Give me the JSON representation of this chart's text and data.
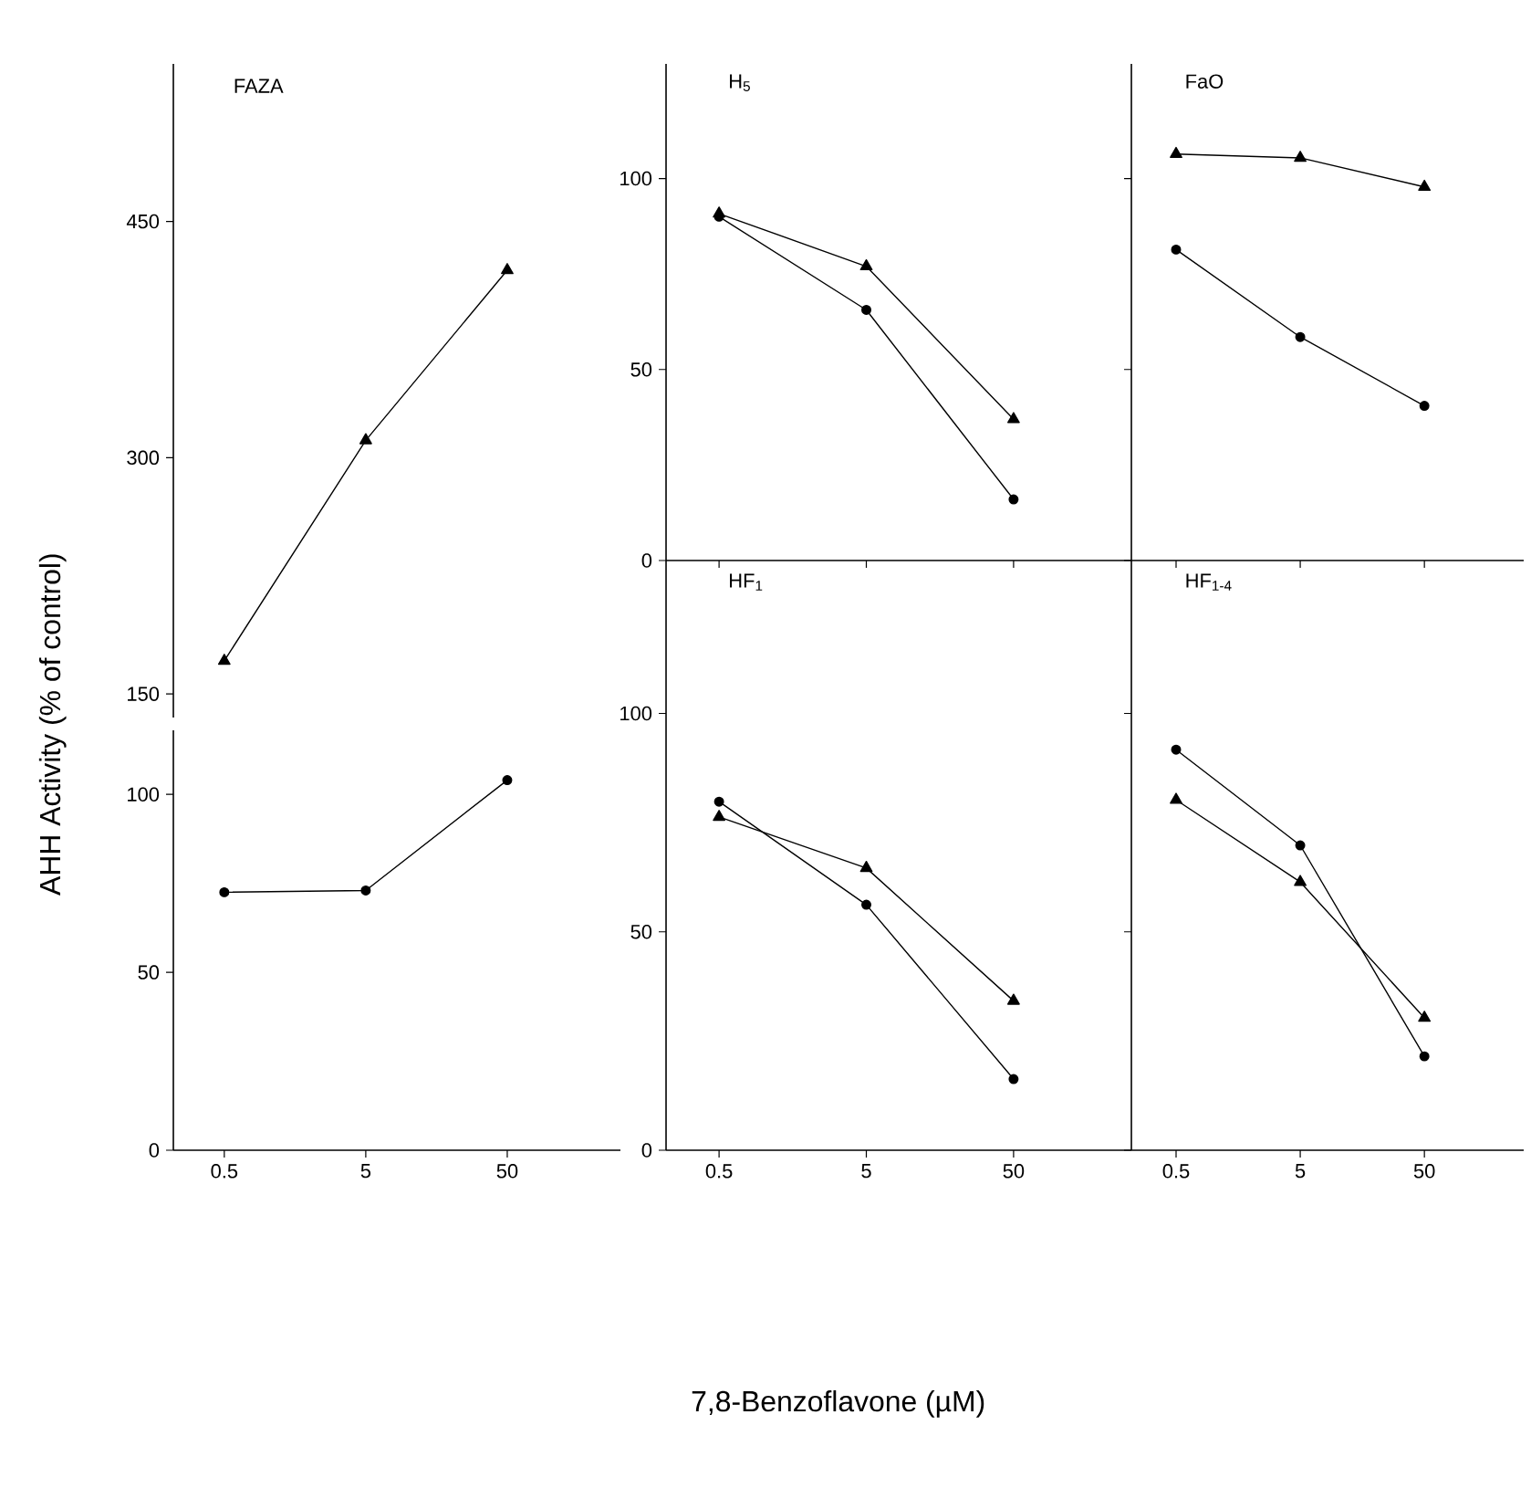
{
  "chart_data": [
    {
      "type": "line",
      "title": "FAZA",
      "ylabel": "AHH Activity (% of control)",
      "categories": [
        "0.5",
        "5",
        "50"
      ],
      "ylim": [
        135,
        550
      ],
      "yticks": [
        150,
        300,
        450
      ],
      "tick_labels": "y",
      "series": [
        {
          "color": "#000000",
          "marker": "triangle",
          "values": [
            171,
            311,
            419
          ]
        }
      ]
    },
    {
      "type": "line",
      "categories": [
        "0.5",
        "5",
        "50"
      ],
      "ylim": [
        0,
        118
      ],
      "yticks": [
        0,
        50,
        100
      ],
      "series": [
        {
          "color": "#000000",
          "marker": "circle",
          "values": [
            72.5,
            73,
            104
          ]
        }
      ]
    },
    {
      "type": "line",
      "title": "H$_{5}$",
      "categories": [
        "0.5",
        "5",
        "50"
      ],
      "ylim": [
        0,
        130
      ],
      "yticks": [
        0,
        50,
        100
      ],
      "tick_labels": "y",
      "series": [
        {
          "color": "#000000",
          "marker": "triangle",
          "values": [
            90.8,
            77,
            37
          ]
        },
        {
          "color": "#000000",
          "marker": "circle",
          "values": [
            90,
            65.6,
            16
          ]
        }
      ]
    },
    {
      "type": "line",
      "title": "FaO",
      "categories": [
        "0.5",
        "5",
        "50"
      ],
      "ylim": [
        0,
        130
      ],
      "yticks": [
        0,
        50,
        100
      ],
      "tick_labels": false,
      "series": [
        {
          "color": "#000000",
          "marker": "triangle",
          "values": [
            106.4,
            105.4,
            97.8
          ]
        },
        {
          "color": "#000000",
          "marker": "circle",
          "values": [
            81.4,
            58.5,
            40.5
          ]
        }
      ]
    },
    {
      "type": "line",
      "title": "HF$_{1}$",
      "xlabel": "7,8-Benzoflavone (µM)",
      "categories": [
        "0.5",
        "5",
        "50"
      ],
      "ylim": [
        0,
        135
      ],
      "yticks": [
        0,
        50,
        100
      ],
      "series": [
        {
          "color": "#000000",
          "marker": "triangle",
          "values": [
            76.3,
            64.6,
            34.2
          ]
        },
        {
          "color": "#000000",
          "marker": "circle",
          "values": [
            79.8,
            56.2,
            16.3
          ]
        }
      ]
    },
    {
      "type": "line",
      "title": "HF$_{1-4}$",
      "categories": [
        "0.5",
        "5",
        "50"
      ],
      "ylim": [
        0,
        135
      ],
      "yticks": [
        0,
        50,
        100
      ],
      "tick_labels": "x",
      "series": [
        {
          "color": "#000000",
          "marker": "triangle",
          "values": [
            80.2,
            61.4,
            30.3
          ]
        },
        {
          "color": "#000000",
          "marker": "circle",
          "values": [
            91.7,
            69.8,
            21.5
          ]
        }
      ]
    }
  ]
}
